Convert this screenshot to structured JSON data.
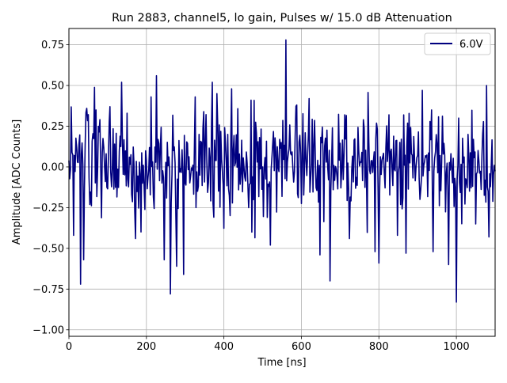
{
  "chart_data": {
    "type": "line",
    "title": "Run 2883, channel5, lo gain, Pulses w/ 15.0 dB Attenuation",
    "xlabel": "Time [ns]",
    "ylabel": "Amplitude [ADC Counts]",
    "xlim": [
      0,
      1100
    ],
    "ylim": [
      -1.04,
      0.85
    ],
    "xticks": [
      0,
      200,
      400,
      600,
      800,
      1000
    ],
    "xtick_labels": [
      "0",
      "200",
      "400",
      "600",
      "800",
      "1000"
    ],
    "yticks": [
      -1.0,
      -0.75,
      -0.5,
      -0.25,
      0.0,
      0.25,
      0.5,
      0.75
    ],
    "ytick_labels": [
      "−1.00",
      "−0.75",
      "−0.50",
      "−0.25",
      "0.00",
      "0.25",
      "0.50",
      "0.75"
    ],
    "grid": true,
    "legend_position": "top-right",
    "series": [
      {
        "name": "6.0V",
        "color": "#000080",
        "sample_interval": 2,
        "x_start": 0,
        "noise_std": 0.16,
        "seed": 2883,
        "peaks": [
          {
            "x": 12,
            "y": -0.42
          },
          {
            "x": 20,
            "y": 0.12
          },
          {
            "x": 30,
            "y": -0.72
          },
          {
            "x": 38,
            "y": -0.57
          },
          {
            "x": 46,
            "y": 0.36
          },
          {
            "x": 70,
            "y": 0.35
          },
          {
            "x": 105,
            "y": 0.37
          },
          {
            "x": 136,
            "y": 0.52
          },
          {
            "x": 150,
            "y": 0.33
          },
          {
            "x": 172,
            "y": -0.44
          },
          {
            "x": 212,
            "y": 0.43
          },
          {
            "x": 226,
            "y": 0.56
          },
          {
            "x": 246,
            "y": -0.57
          },
          {
            "x": 262,
            "y": -0.78
          },
          {
            "x": 278,
            "y": -0.61
          },
          {
            "x": 296,
            "y": -0.66
          },
          {
            "x": 326,
            "y": 0.43
          },
          {
            "x": 348,
            "y": 0.34
          },
          {
            "x": 370,
            "y": 0.52
          },
          {
            "x": 382,
            "y": 0.45
          },
          {
            "x": 420,
            "y": 0.48
          },
          {
            "x": 470,
            "y": 0.41
          },
          {
            "x": 520,
            "y": -0.48
          },
          {
            "x": 560,
            "y": 0.78
          },
          {
            "x": 588,
            "y": 0.38
          },
          {
            "x": 620,
            "y": 0.42
          },
          {
            "x": 648,
            "y": -0.54
          },
          {
            "x": 674,
            "y": -0.7
          },
          {
            "x": 712,
            "y": 0.32
          },
          {
            "x": 724,
            "y": -0.44
          },
          {
            "x": 760,
            "y": 0.29
          },
          {
            "x": 790,
            "y": -0.52
          },
          {
            "x": 800,
            "y": -0.59
          },
          {
            "x": 825,
            "y": 0.32
          },
          {
            "x": 848,
            "y": -0.42
          },
          {
            "x": 870,
            "y": -0.53
          },
          {
            "x": 912,
            "y": 0.47
          },
          {
            "x": 936,
            "y": 0.35
          },
          {
            "x": 940,
            "y": -0.52
          },
          {
            "x": 980,
            "y": -0.6
          },
          {
            "x": 1000,
            "y": -0.83
          },
          {
            "x": 1006,
            "y": 0.3
          },
          {
            "x": 1030,
            "y": 0.2
          },
          {
            "x": 1050,
            "y": -0.35
          },
          {
            "x": 1078,
            "y": 0.5
          },
          {
            "x": 1084,
            "y": -0.43
          }
        ]
      }
    ]
  }
}
